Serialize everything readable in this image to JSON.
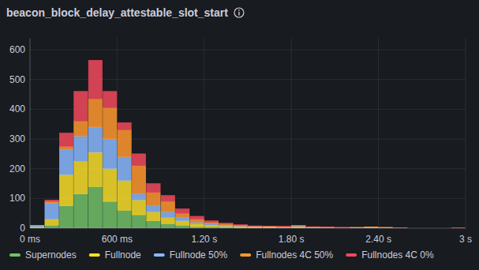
{
  "chart_data": {
    "type": "histogram",
    "title": "beacon_block_delay_attestable_slot_start",
    "bins": [
      0,
      100,
      200,
      300,
      400,
      500,
      600,
      700,
      800,
      900,
      1000,
      1100,
      1200,
      1300,
      1400,
      1500,
      1600,
      1700,
      1800,
      1900,
      2000,
      2100,
      2200,
      2300,
      2400,
      2500,
      2600,
      2700,
      2800,
      2900,
      3000
    ],
    "series": [
      {
        "name": "Supernodes",
        "color": "#73bf69",
        "values": [
          2,
          10,
          75,
          115,
          140,
          90,
          60,
          45,
          25,
          15,
          10,
          5,
          5,
          3,
          2,
          1,
          1,
          1,
          1,
          1,
          0,
          0,
          0,
          1,
          0,
          0,
          0,
          0,
          0,
          0
        ]
      },
      {
        "name": "Fullnode",
        "color": "#fade2a",
        "values": [
          3,
          20,
          105,
          110,
          115,
          110,
          100,
          50,
          30,
          20,
          15,
          10,
          5,
          4,
          3,
          2,
          2,
          1,
          3,
          1,
          1,
          1,
          1,
          1,
          1,
          0,
          0,
          0,
          0,
          0
        ]
      },
      {
        "name": "Fullnode 50%",
        "color": "#8ab8ff",
        "values": [
          5,
          55,
          85,
          85,
          85,
          100,
          80,
          20,
          20,
          20,
          10,
          5,
          5,
          3,
          2,
          2,
          1,
          1,
          2,
          1,
          1,
          0,
          1,
          1,
          1,
          0,
          0,
          0,
          0,
          0
        ]
      },
      {
        "name": "Fullnodes 4C 50%",
        "color": "#ff9830",
        "values": [
          0,
          5,
          10,
          50,
          95,
          105,
          90,
          95,
          45,
          35,
          15,
          10,
          5,
          4,
          3,
          2,
          2,
          2,
          3,
          1,
          1,
          1,
          1,
          1,
          1,
          1,
          0,
          0,
          0,
          0
        ]
      },
      {
        "name": "Fullnodes 4C 0%",
        "color": "#f2495c",
        "values": [
          0,
          5,
          45,
          100,
          130,
          55,
          25,
          40,
          30,
          20,
          15,
          10,
          5,
          3,
          2,
          1,
          1,
          1,
          1,
          1,
          1,
          1,
          0,
          0,
          0,
          1,
          0,
          0,
          0,
          2
        ]
      }
    ],
    "xlim": [
      0,
      3000
    ],
    "xticks": [
      {
        "value": 0,
        "label": "0 ms"
      },
      {
        "value": 600,
        "label": "600 ms"
      },
      {
        "value": 1200,
        "label": "1.20 s"
      },
      {
        "value": 1800,
        "label": "1.80 s"
      },
      {
        "value": 2400,
        "label": "2.40 s"
      },
      {
        "value": 3000,
        "label": "3 s"
      }
    ],
    "ylim": [
      0,
      640
    ],
    "yticks": [
      0,
      100,
      200,
      300,
      400,
      500,
      600
    ],
    "stacked": true,
    "grid": true,
    "legend": "bottom"
  }
}
